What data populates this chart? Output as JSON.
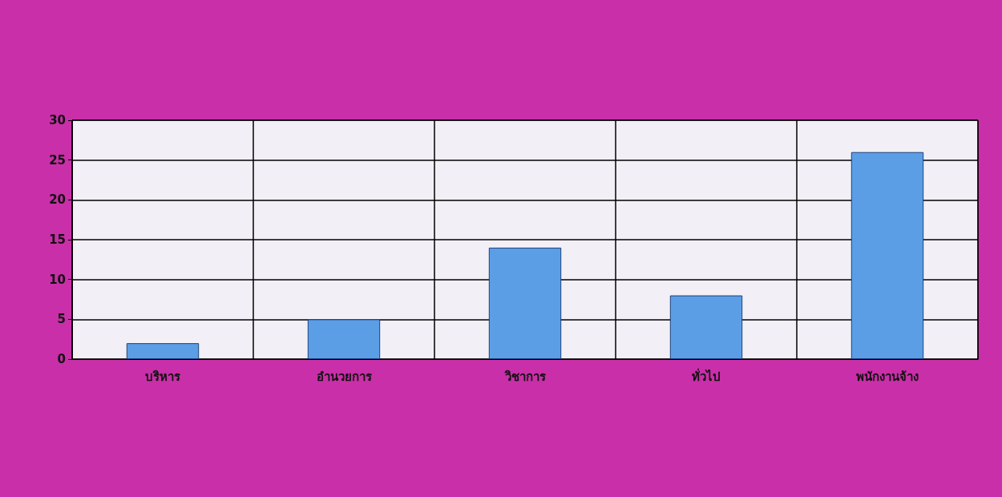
{
  "chart_data": {
    "type": "bar",
    "categories": [
      "บริหาร",
      "อำนวยการ",
      "วิชาการ",
      "ทั่วไป",
      "พนักงานจ้าง"
    ],
    "values": [
      2,
      5,
      14,
      8,
      26
    ],
    "color": "#5b9ee6",
    "ylim": [
      0,
      30
    ],
    "yticks": [
      0,
      5,
      10,
      15,
      20,
      25,
      30
    ],
    "grid": true
  }
}
